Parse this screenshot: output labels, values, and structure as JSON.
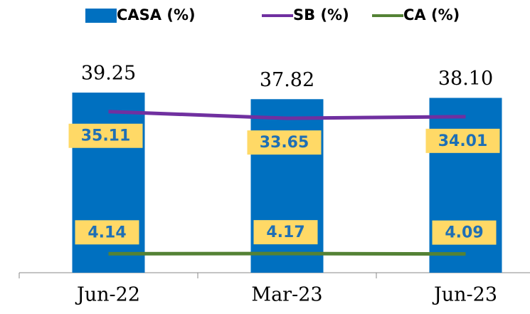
{
  "chart_data": {
    "type": "bar_line",
    "categories": [
      "Jun-22",
      "Mar-23",
      "Jun-23"
    ],
    "series": [
      {
        "name": "CASA (%)",
        "type": "bar",
        "color": "#0070c0",
        "values": [
          39.25,
          37.82,
          38.1
        ],
        "value_labels": [
          "39.25",
          "37.82",
          "38.10"
        ]
      },
      {
        "name": "SB (%)",
        "type": "line",
        "color": "#7030a0",
        "values": [
          35.11,
          33.65,
          34.01
        ]
      },
      {
        "name": "CA (%)",
        "type": "line",
        "color": "#548235",
        "values": [
          4.14,
          4.17,
          4.09
        ]
      }
    ],
    "ylim": [
      0,
      45
    ],
    "legend": "top",
    "grid": false
  }
}
